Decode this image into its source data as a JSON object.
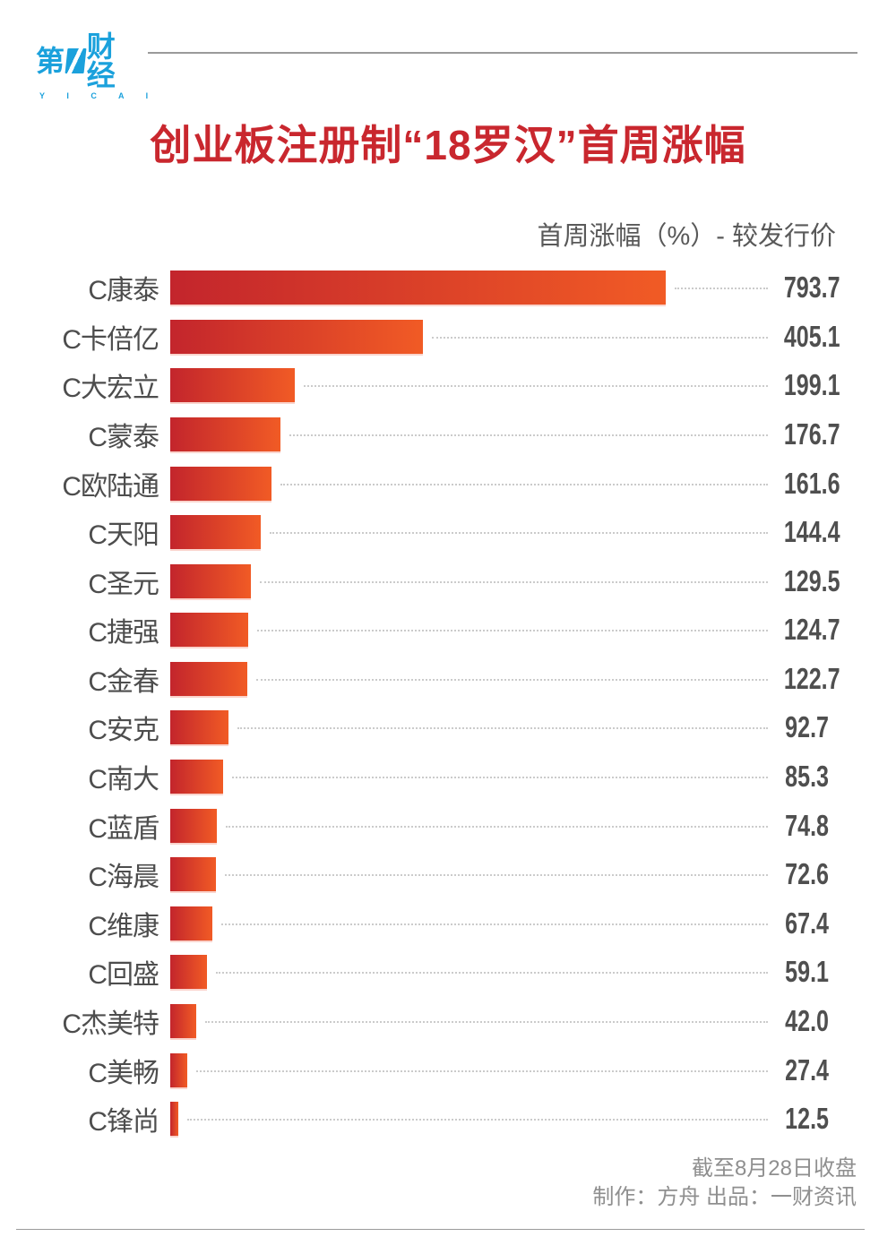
{
  "logo": {
    "char_first": "第",
    "chars_rest": "财经",
    "en": "Y I C A I",
    "blue": "#1BA1DC"
  },
  "header": {
    "title": "创业板注册制“18罗汉”首周涨幅",
    "subtitle": "首周涨幅（%）- 较发行价"
  },
  "chart_data": {
    "type": "bar",
    "orientation": "horizontal",
    "title": "创业板注册制“18罗汉”首周涨幅",
    "value_axis_label": "首周涨幅（%）- 较发行价",
    "xlim": [
      0,
      800
    ],
    "grid": false,
    "legend": "none",
    "categories": [
      "C康泰",
      "C卡倍亿",
      "C大宏立",
      "C蒙泰",
      "C欧陆通",
      "C天阳",
      "C圣元",
      "C捷强",
      "C金春",
      "C安克",
      "C南大",
      "C蓝盾",
      "C海晨",
      "C维康",
      "C回盛",
      "C杰美特",
      "C美畅",
      "C锋尚"
    ],
    "values": [
      793.7,
      405.1,
      199.1,
      176.7,
      161.6,
      144.4,
      129.5,
      124.7,
      122.7,
      92.7,
      85.3,
      74.8,
      72.6,
      67.4,
      59.1,
      42.0,
      27.4,
      12.5
    ],
    "bar_gradient": [
      "#C3252C",
      "#F15B25"
    ]
  },
  "footer": {
    "note": "截至8月28日收盘",
    "credits": "制作：方舟 出品：一财资讯"
  },
  "colors": {
    "title_red": "#C9272E",
    "label_gray": "#4D4D4D",
    "value_gray": "#4F4F4F",
    "subtitle_gray": "#595959",
    "footer_gray": "#8F8F8F",
    "divider_gray": "#9A9A9A",
    "leader_dot_gray": "#CBCBCB"
  }
}
